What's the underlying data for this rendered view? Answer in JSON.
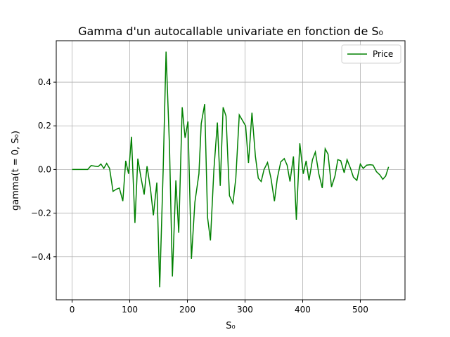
{
  "chart_data": {
    "type": "line",
    "title": "Gamma d'un autocallable univariate en fonction de S₀",
    "xlabel": "S₀",
    "ylabel": "gamma(t = 0, S₀)",
    "x": [
      0,
      10,
      20,
      27,
      33,
      40,
      45,
      50,
      55,
      60,
      65,
      71,
      77,
      82,
      88,
      93,
      98,
      103,
      109,
      114,
      119,
      125,
      130,
      136,
      141,
      147,
      152,
      158,
      163,
      169,
      174,
      180,
      185,
      191,
      196,
      201,
      207,
      213,
      220,
      224,
      230,
      235,
      240,
      246,
      252,
      257,
      262,
      267,
      273,
      279,
      284,
      290,
      301,
      306,
      312,
      318,
      323,
      328,
      333,
      339,
      345,
      351,
      356,
      362,
      368,
      373,
      378,
      384,
      389,
      395,
      401,
      406,
      411,
      417,
      422,
      428,
      434,
      439,
      444,
      450,
      456,
      461,
      466,
      472,
      477,
      483,
      488,
      494,
      500,
      505,
      511,
      517,
      522,
      528,
      534,
      539,
      544,
      549
    ],
    "series": [
      {
        "name": "Price",
        "color": "#008000",
        "values": [
          0,
          0,
          0,
          0,
          0.018,
          0.015,
          0.013,
          0.025,
          0.005,
          0.028,
          0.005,
          -0.1,
          -0.09,
          -0.085,
          -0.145,
          0.04,
          -0.02,
          0.15,
          -0.245,
          0.05,
          -0.03,
          -0.115,
          0.015,
          -0.09,
          -0.21,
          -0.06,
          -0.54,
          0.0,
          0.54,
          0.1,
          -0.49,
          -0.05,
          -0.29,
          0.285,
          0.145,
          0.22,
          -0.41,
          -0.15,
          -0.02,
          0.21,
          0.3,
          -0.22,
          -0.325,
          0.0,
          0.215,
          -0.075,
          0.285,
          0.245,
          -0.12,
          -0.155,
          -0.04,
          0.25,
          0.2,
          0.03,
          0.26,
          0.06,
          -0.04,
          -0.055,
          0.0,
          0.032,
          -0.04,
          -0.145,
          -0.04,
          0.035,
          0.05,
          0.02,
          -0.055,
          0.06,
          -0.23,
          0.12,
          -0.02,
          0.04,
          -0.05,
          0.045,
          0.08,
          -0.02,
          -0.085,
          0.095,
          0.07,
          -0.08,
          -0.03,
          0.045,
          0.04,
          -0.015,
          0.045,
          0.005,
          -0.035,
          -0.05,
          0.025,
          0.005,
          0.02,
          0.022,
          0.02,
          -0.01,
          -0.025,
          -0.045,
          -0.03,
          0.012
        ]
      }
    ],
    "xlim": [
      -27.5,
      577.5
    ],
    "xticks": [
      0,
      100,
      200,
      300,
      400,
      500
    ],
    "ylim": [
      -0.597,
      0.59
    ],
    "yticks": [
      {
        "value": -0.4,
        "label": "−0.4"
      },
      {
        "value": -0.2,
        "label": "−0.2"
      },
      {
        "value": 0,
        "label": "0.0"
      },
      {
        "value": 0.2,
        "label": "0.2"
      },
      {
        "value": 0.4,
        "label": "0.4"
      }
    ],
    "grid": true,
    "legend": "upper right"
  }
}
